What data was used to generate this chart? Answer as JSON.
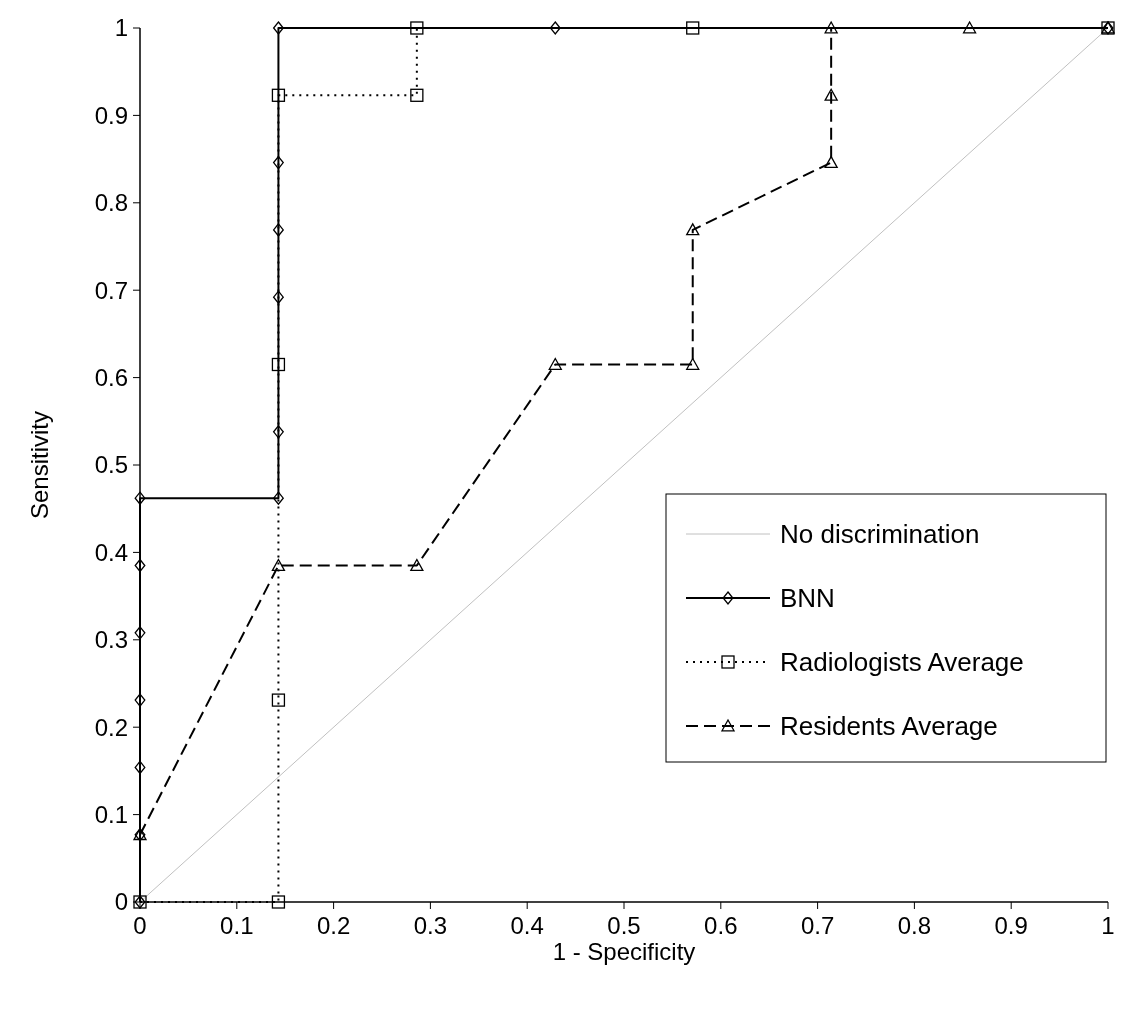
{
  "chart_data": {
    "type": "line",
    "xlabel": "1 - Specificity",
    "ylabel": "Sensitivity",
    "xlim": [
      0,
      1
    ],
    "ylim": [
      0,
      1
    ],
    "xticks": [
      0,
      0.1,
      0.2,
      0.3,
      0.4,
      0.5,
      0.6,
      0.7,
      0.8,
      0.9,
      1
    ],
    "yticks": [
      0,
      0.1,
      0.2,
      0.3,
      0.4,
      0.5,
      0.6,
      0.7,
      0.8,
      0.9,
      1
    ],
    "grid": false,
    "legend": "bottom right",
    "series": [
      {
        "name": "No discrimination",
        "color": "#c0c0c0",
        "marker": "none",
        "line_style": "solid",
        "x": [
          0,
          1
        ],
        "values": [
          0,
          1
        ]
      },
      {
        "name": "BNN",
        "color": "#000000",
        "marker": "diamond",
        "line_style": "solid",
        "x": [
          0,
          0,
          0,
          0,
          0,
          0,
          0,
          0.143,
          0.143,
          0.143,
          0.143,
          0.143,
          0.143,
          0.429,
          1
        ],
        "values": [
          0,
          0.077,
          0.154,
          0.231,
          0.308,
          0.385,
          0.462,
          0.462,
          0.538,
          0.692,
          0.769,
          0.846,
          1,
          1,
          1
        ]
      },
      {
        "name": "Radiologists Average",
        "color": "#000000",
        "marker": "square",
        "line_style": "dotted",
        "x": [
          0,
          0.143,
          0.143,
          0.143,
          0.143,
          0.286,
          0.286,
          0.571,
          1
        ],
        "values": [
          0,
          0,
          0.231,
          0.615,
          0.923,
          0.923,
          1,
          1,
          1
        ]
      },
      {
        "name": "Residents Average",
        "color": "#000000",
        "marker": "triangle",
        "line_style": "dashed",
        "x": [
          0,
          0.143,
          0.286,
          0.429,
          0.571,
          0.571,
          0.714,
          0.714,
          0.714,
          0.857,
          1
        ],
        "values": [
          0.077,
          0.385,
          0.385,
          0.615,
          0.615,
          0.769,
          0.846,
          0.923,
          1,
          1,
          1
        ]
      }
    ]
  }
}
